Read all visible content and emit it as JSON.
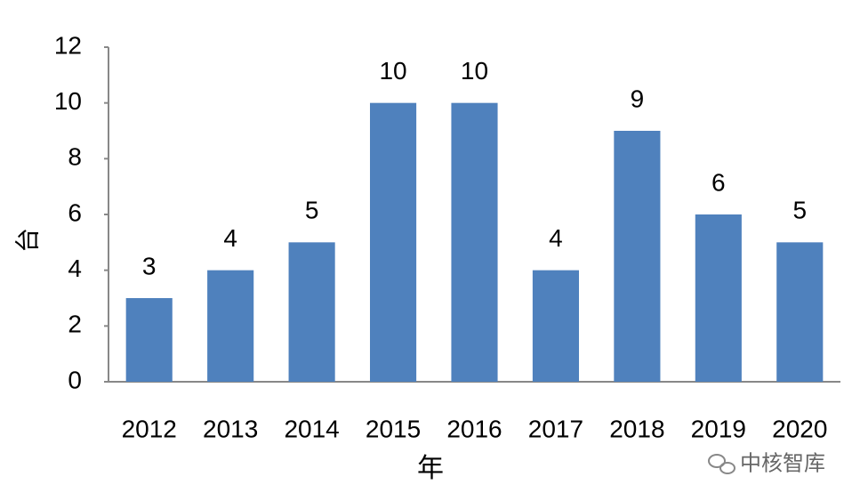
{
  "chart_data": {
    "type": "bar",
    "categories": [
      "2012",
      "2013",
      "2014",
      "2015",
      "2016",
      "2017",
      "2018",
      "2019",
      "2020"
    ],
    "values": [
      3,
      4,
      5,
      10,
      10,
      4,
      9,
      6,
      5
    ],
    "color": "#4f81bd",
    "ylim": [
      0,
      12
    ],
    "yticks": [
      0,
      2,
      4,
      6,
      8,
      10,
      12
    ],
    "grid": false,
    "x_label": "年",
    "y_label": "台",
    "watermark": "中核智库"
  }
}
